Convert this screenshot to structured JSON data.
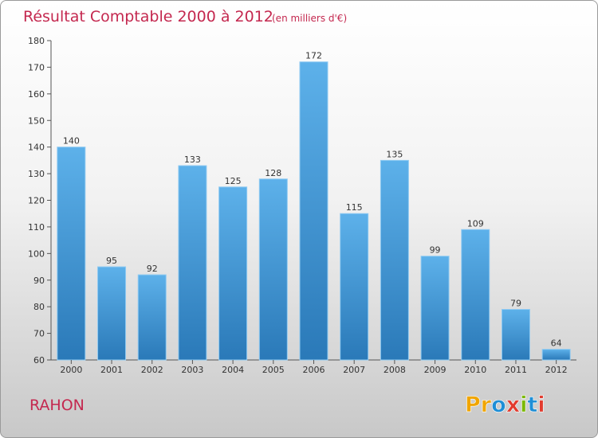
{
  "header": {
    "title": "Résultat Comptable 2000 à 2012",
    "subtitle": "(en milliers d'€)"
  },
  "commune": "RAHON",
  "logo": {
    "letters": [
      "P",
      "r",
      "o",
      "x",
      "i",
      "t",
      "i"
    ],
    "colors": [
      "#f0a500",
      "#f0a500",
      "#1f8fd6",
      "#e23b2e",
      "#7ab800",
      "#1f8fd6",
      "#e23b2e"
    ]
  },
  "colors": {
    "bar_top": "#5db1ea",
    "bar_bottom": "#2a79b8",
    "title": "#c4284f"
  },
  "chart_data": {
    "type": "bar",
    "title": "Résultat Comptable 2000 à 2012",
    "subtitle": "(en milliers d'€)",
    "xlabel": "",
    "ylabel": "",
    "categories": [
      "2000",
      "2001",
      "2002",
      "2003",
      "2004",
      "2005",
      "2006",
      "2007",
      "2008",
      "2009",
      "2010",
      "2011",
      "2012"
    ],
    "values": [
      140,
      95,
      92,
      133,
      125,
      128,
      172,
      115,
      135,
      99,
      109,
      79,
      64
    ],
    "ylim": [
      60,
      180
    ],
    "yticks": [
      60,
      70,
      80,
      90,
      100,
      110,
      120,
      130,
      140,
      150,
      160,
      170,
      180
    ],
    "grid": false,
    "legend": "none"
  }
}
